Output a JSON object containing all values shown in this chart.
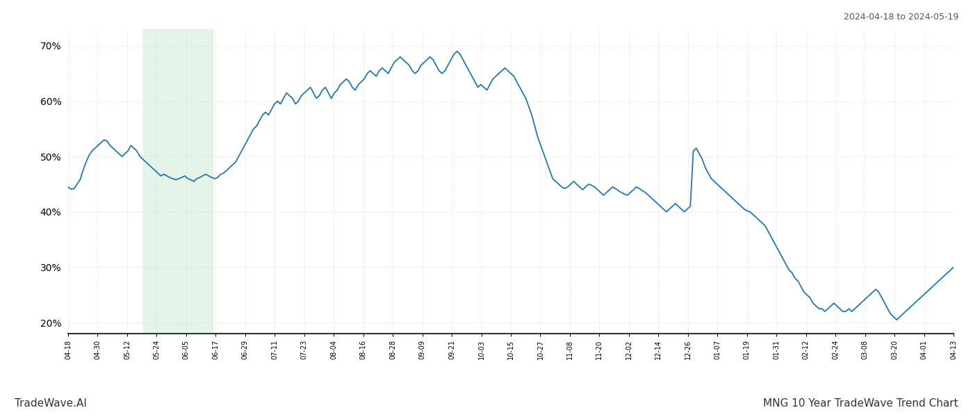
{
  "title_top_right": "2024-04-18 to 2024-05-19",
  "title_bottom_left": "TradeWave.AI",
  "title_bottom_right": "MNG 10 Year TradeWave Trend Chart",
  "line_color": "#1f77b4",
  "line_width": 1.3,
  "ylim": [
    18,
    73
  ],
  "yticks": [
    20,
    30,
    40,
    50,
    60,
    70
  ],
  "green_shade_xstart": 0.085,
  "green_shade_xend": 0.163,
  "background_color": "#ffffff",
  "grid_color": "#cccccc",
  "x_labels": [
    "04-18",
    "04-30",
    "05-12",
    "05-24",
    "06-05",
    "06-17",
    "06-29",
    "07-11",
    "07-23",
    "08-04",
    "08-16",
    "08-28",
    "09-09",
    "09-21",
    "10-03",
    "10-15",
    "10-27",
    "11-08",
    "11-20",
    "12-02",
    "12-14",
    "12-26",
    "01-07",
    "01-19",
    "01-31",
    "02-12",
    "02-24",
    "03-08",
    "03-20",
    "04-01",
    "04-13"
  ],
  "values": [
    44.5,
    44.1,
    44.2,
    45.0,
    45.8,
    47.5,
    49.0,
    50.2,
    51.0,
    51.5,
    52.0,
    52.5,
    53.0,
    52.8,
    52.0,
    51.5,
    51.0,
    50.5,
    50.0,
    50.5,
    51.0,
    52.0,
    51.5,
    51.0,
    50.0,
    49.5,
    49.0,
    48.5,
    48.0,
    47.5,
    47.0,
    46.5,
    46.8,
    46.5,
    46.2,
    46.0,
    45.8,
    46.0,
    46.2,
    46.5,
    46.0,
    45.8,
    45.5,
    46.0,
    46.2,
    46.5,
    46.8,
    46.5,
    46.2,
    46.0,
    46.2,
    46.8,
    47.0,
    47.5,
    48.0,
    48.5,
    49.0,
    50.0,
    51.0,
    52.0,
    53.0,
    54.0,
    55.0,
    55.5,
    56.5,
    57.5,
    58.0,
    57.5,
    58.5,
    59.5,
    60.0,
    59.5,
    60.5,
    61.5,
    61.0,
    60.5,
    59.5,
    60.0,
    61.0,
    61.5,
    62.0,
    62.5,
    61.5,
    60.5,
    61.0,
    62.0,
    62.5,
    61.5,
    60.5,
    61.5,
    62.0,
    63.0,
    63.5,
    64.0,
    63.5,
    62.5,
    62.0,
    63.0,
    63.5,
    64.0,
    65.0,
    65.5,
    65.0,
    64.5,
    65.5,
    66.0,
    65.5,
    65.0,
    66.0,
    67.0,
    67.5,
    68.0,
    67.5,
    67.0,
    66.5,
    65.5,
    65.0,
    65.5,
    66.5,
    67.0,
    67.5,
    68.0,
    67.5,
    66.5,
    65.5,
    65.0,
    65.5,
    66.5,
    67.5,
    68.5,
    69.0,
    68.5,
    67.5,
    66.5,
    65.5,
    64.5,
    63.5,
    62.5,
    63.0,
    62.5,
    62.0,
    63.0,
    64.0,
    64.5,
    65.0,
    65.5,
    66.0,
    65.5,
    65.0,
    64.5,
    63.5,
    62.5,
    61.5,
    60.5,
    59.0,
    57.5,
    55.5,
    53.5,
    52.0,
    50.5,
    49.0,
    47.5,
    46.0,
    45.5,
    45.0,
    44.5,
    44.2,
    44.5,
    45.0,
    45.5,
    45.0,
    44.5,
    44.0,
    44.5,
    45.0,
    44.8,
    44.5,
    44.0,
    43.5,
    43.0,
    43.5,
    44.0,
    44.5,
    44.2,
    43.8,
    43.5,
    43.2,
    43.0,
    43.5,
    44.0,
    44.5,
    44.2,
    43.8,
    43.5,
    43.0,
    42.5,
    42.0,
    41.5,
    41.0,
    40.5,
    40.0,
    40.5,
    41.0,
    41.5,
    41.0,
    40.5,
    40.0,
    40.5,
    41.0,
    51.0,
    51.5,
    50.5,
    49.5,
    48.0,
    47.0,
    46.0,
    45.5,
    45.0,
    44.5,
    44.0,
    43.5,
    43.0,
    42.5,
    42.0,
    41.5,
    41.0,
    40.5,
    40.2,
    40.0,
    39.5,
    39.0,
    38.5,
    38.0,
    37.5,
    36.5,
    35.5,
    34.5,
    33.5,
    32.5,
    31.5,
    30.5,
    29.5,
    29.0,
    28.0,
    27.5,
    26.5,
    25.5,
    25.0,
    24.5,
    23.5,
    23.0,
    22.5,
    22.5,
    22.0,
    22.5,
    23.0,
    23.5,
    23.0,
    22.5,
    22.0,
    22.0,
    22.5,
    22.0,
    22.5,
    23.0,
    23.5,
    24.0,
    24.5,
    25.0,
    25.5,
    26.0,
    25.5,
    24.5,
    23.5,
    22.5,
    21.5,
    21.0,
    20.5,
    21.0,
    21.5,
    22.0,
    22.5,
    23.0,
    23.5,
    24.0,
    24.5,
    25.0,
    25.5,
    26.0,
    26.5,
    27.0,
    27.5,
    28.0,
    28.5,
    29.0,
    29.5,
    30.0
  ]
}
